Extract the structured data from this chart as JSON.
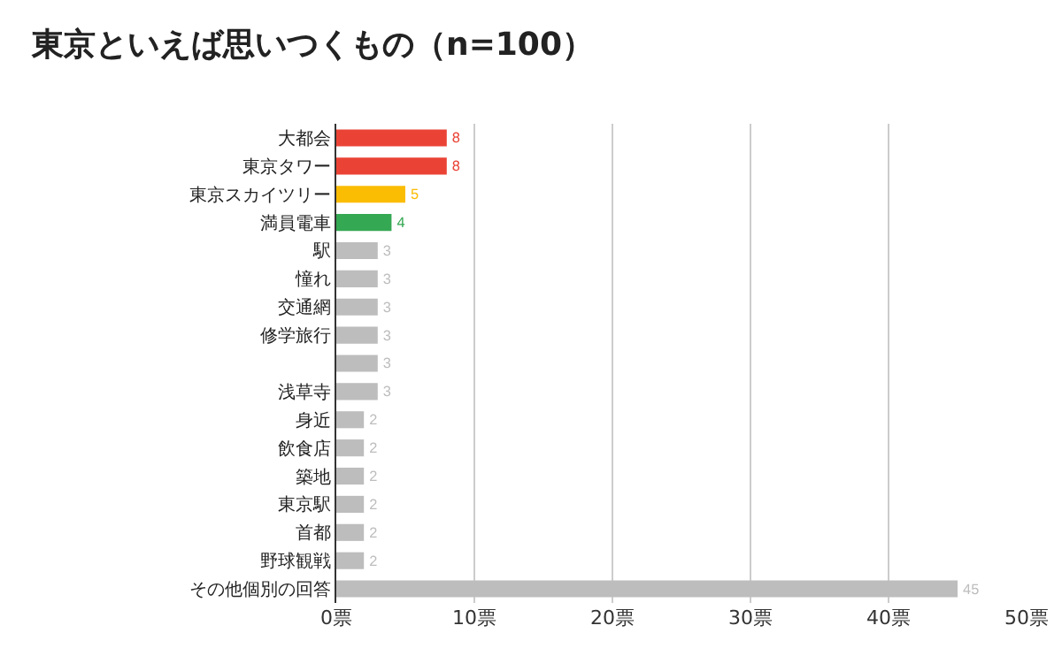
{
  "chart_data": {
    "type": "bar",
    "orientation": "horizontal",
    "title": "東京といえば思いつくもの（n=100）",
    "categories": [
      "大都会",
      "東京タワー",
      "東京スカイツリー",
      "満員電車",
      "駅",
      "憧れ",
      "交通網",
      "修学旅行",
      null,
      "浅草寺",
      "身近",
      "飲食店",
      "築地",
      "東京駅",
      "首都",
      "野球観戦",
      "その他個別の回答"
    ],
    "values": [
      8,
      8,
      5,
      4,
      3,
      3,
      3,
      3,
      3,
      3,
      2,
      2,
      2,
      2,
      2,
      2,
      45
    ],
    "colors": [
      "#ea4335",
      "#ea4335",
      "#fbbc04",
      "#34a853",
      "#bdbdbd",
      "#bdbdbd",
      "#bdbdbd",
      "#bdbdbd",
      "#bdbdbd",
      "#bdbdbd",
      "#bdbdbd",
      "#bdbdbd",
      "#bdbdbd",
      "#bdbdbd",
      "#bdbdbd",
      "#bdbdbd",
      "#bdbdbd"
    ],
    "xlim": [
      0,
      50
    ],
    "xticks": [
      {
        "value": 0,
        "label": "0票"
      },
      {
        "value": 10,
        "label": "10票"
      },
      {
        "value": 20,
        "label": "20票"
      },
      {
        "value": 30,
        "label": "30票"
      },
      {
        "value": 40,
        "label": "40票"
      },
      {
        "value": 50,
        "label": "50票"
      }
    ],
    "grid": "x",
    "data_labels": true,
    "legend": false
  }
}
